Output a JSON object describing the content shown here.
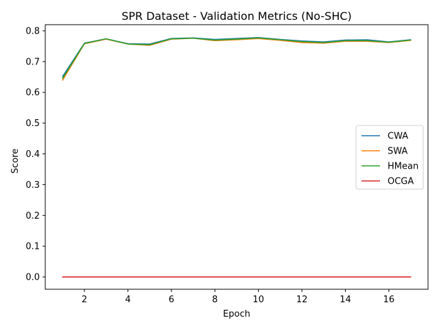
{
  "chart_data": {
    "type": "line",
    "title": "SPR Dataset - Validation Metrics (No-SHC)",
    "xlabel": "Epoch",
    "ylabel": "Score",
    "xlim": [
      0.2,
      17.8
    ],
    "ylim": [
      -0.04,
      0.82
    ],
    "x": [
      1,
      2,
      3,
      4,
      5,
      6,
      7,
      8,
      9,
      10,
      11,
      12,
      13,
      14,
      15,
      16,
      17
    ],
    "xticks": [
      2,
      4,
      6,
      8,
      10,
      12,
      14,
      16
    ],
    "xtick_labels": [
      "2",
      "4",
      "6",
      "8",
      "10",
      "12",
      "14",
      "16"
    ],
    "yticks": [
      0.0,
      0.1,
      0.2,
      0.3,
      0.4,
      0.5,
      0.6,
      0.7,
      0.8
    ],
    "ytick_labels": [
      "0.0",
      "0.1",
      "0.2",
      "0.3",
      "0.4",
      "0.5",
      "0.6",
      "0.7",
      "0.8"
    ],
    "legend_position": "center-right",
    "series": [
      {
        "name": "CWA",
        "color": "#1f77b4",
        "values": [
          0.652,
          0.76,
          0.774,
          0.758,
          0.757,
          0.775,
          0.777,
          0.772,
          0.775,
          0.778,
          0.772,
          0.767,
          0.764,
          0.77,
          0.771,
          0.764,
          0.771
        ]
      },
      {
        "name": "SWA",
        "color": "#ff7f0e",
        "values": [
          0.64,
          0.758,
          0.773,
          0.757,
          0.753,
          0.773,
          0.776,
          0.768,
          0.771,
          0.775,
          0.769,
          0.762,
          0.76,
          0.766,
          0.766,
          0.762,
          0.769
        ]
      },
      {
        "name": "HMean",
        "color": "#2ca02c",
        "values": [
          0.646,
          0.759,
          0.774,
          0.757,
          0.755,
          0.774,
          0.776,
          0.77,
          0.773,
          0.777,
          0.771,
          0.765,
          0.762,
          0.768,
          0.768,
          0.763,
          0.77
        ]
      },
      {
        "name": "OCGA",
        "color": "#d62728",
        "values": [
          0,
          0,
          0,
          0,
          0,
          0,
          0,
          0,
          0,
          0,
          0,
          0,
          0,
          0,
          0,
          0,
          0
        ]
      }
    ]
  }
}
